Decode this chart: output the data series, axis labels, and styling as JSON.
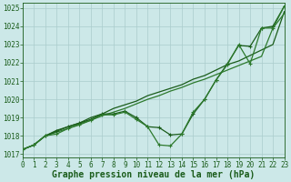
{
  "bg_color": "#cce8e8",
  "grid_color": "#b8d8d8",
  "line_color_dark": "#1a5c1a",
  "line_color_med": "#2d7a2d",
  "xlabel": "Graphe pression niveau de la mer (hPa)",
  "xlim": [
    0,
    23
  ],
  "ylim": [
    1016.8,
    1025.3
  ],
  "yticks": [
    1017,
    1018,
    1019,
    1020,
    1021,
    1022,
    1023,
    1024,
    1025
  ],
  "xticks": [
    0,
    1,
    2,
    3,
    4,
    5,
    6,
    7,
    8,
    9,
    10,
    11,
    12,
    13,
    14,
    15,
    16,
    17,
    18,
    19,
    20,
    21,
    22,
    23
  ],
  "line_straight1": [
    1017.25,
    1017.5,
    1018.0,
    1018.3,
    1018.5,
    1018.7,
    1019.0,
    1019.2,
    1019.5,
    1019.7,
    1019.9,
    1020.2,
    1020.4,
    1020.6,
    1020.8,
    1021.1,
    1021.3,
    1021.6,
    1021.9,
    1022.1,
    1022.4,
    1022.7,
    1023.0,
    1024.8
  ],
  "line_straight2": [
    1017.25,
    1017.5,
    1018.0,
    1018.2,
    1018.4,
    1018.65,
    1018.85,
    1019.1,
    1019.3,
    1019.5,
    1019.75,
    1020.0,
    1020.2,
    1020.45,
    1020.65,
    1020.9,
    1021.1,
    1021.35,
    1021.6,
    1021.85,
    1022.1,
    1022.35,
    1023.9,
    1024.7
  ],
  "line_marked1": [
    1017.25,
    1017.5,
    1018.0,
    1018.25,
    1018.5,
    1018.7,
    1018.9,
    1019.2,
    1019.2,
    1019.35,
    1019.0,
    1018.5,
    1018.45,
    1018.05,
    1018.1,
    1019.2,
    1020.0,
    1021.05,
    1021.95,
    1022.95,
    1022.9,
    1023.9,
    1024.0,
    1025.1
  ],
  "line_marked2": [
    1017.25,
    1017.5,
    1018.0,
    1018.1,
    1018.4,
    1018.6,
    1018.85,
    1019.15,
    1019.15,
    1019.3,
    1018.9,
    1018.5,
    1017.5,
    1017.45,
    1018.1,
    1019.3,
    1020.0,
    1021.05,
    1021.9,
    1023.0,
    1021.95,
    1023.9,
    1023.9,
    1025.1
  ],
  "marker_style": "+",
  "marker_size": 3,
  "line_width": 0.9,
  "font_size_label": 7,
  "font_size_tick": 5.5
}
